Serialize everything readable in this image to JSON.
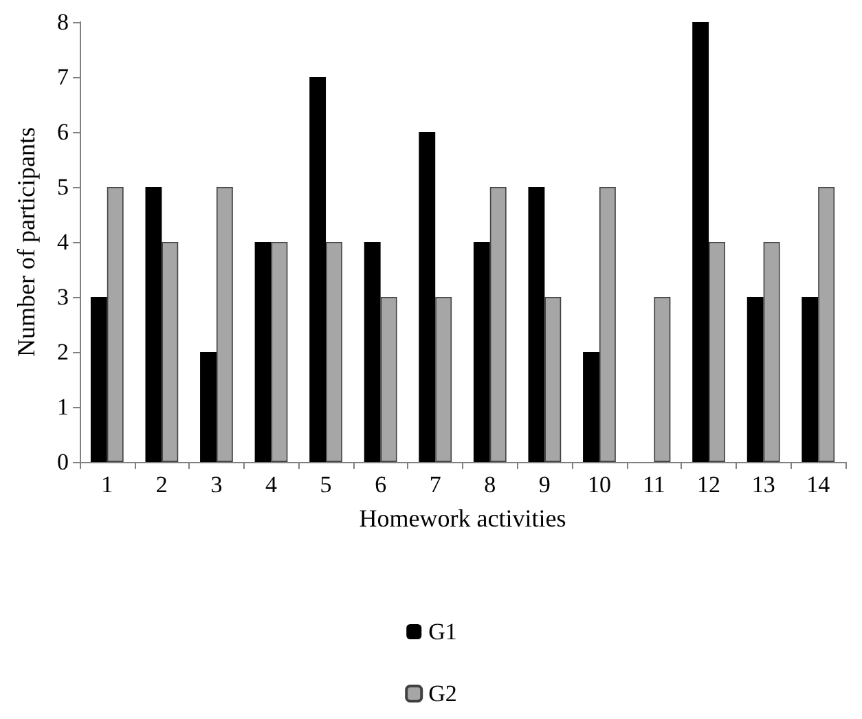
{
  "chart_data": {
    "type": "bar",
    "xlabel": "Homework activities",
    "ylabel": "Number of participants",
    "categories": [
      "1",
      "2",
      "3",
      "4",
      "5",
      "6",
      "7",
      "8",
      "9",
      "10",
      "11",
      "12",
      "13",
      "14"
    ],
    "series": [
      {
        "name": "G1",
        "color": "#000000",
        "values": [
          3,
          5,
          2,
          4,
          7,
          4,
          6,
          4,
          5,
          2,
          0,
          8,
          3,
          3
        ]
      },
      {
        "name": "G2",
        "color": "#a6a6a6",
        "values": [
          5,
          4,
          5,
          4,
          4,
          3,
          3,
          5,
          3,
          5,
          3,
          4,
          4,
          5
        ]
      }
    ],
    "ylim": [
      0,
      8
    ],
    "yticks": [
      0,
      1,
      2,
      3,
      4,
      5,
      6,
      7,
      8
    ],
    "grid": false,
    "legend": "bottom"
  }
}
